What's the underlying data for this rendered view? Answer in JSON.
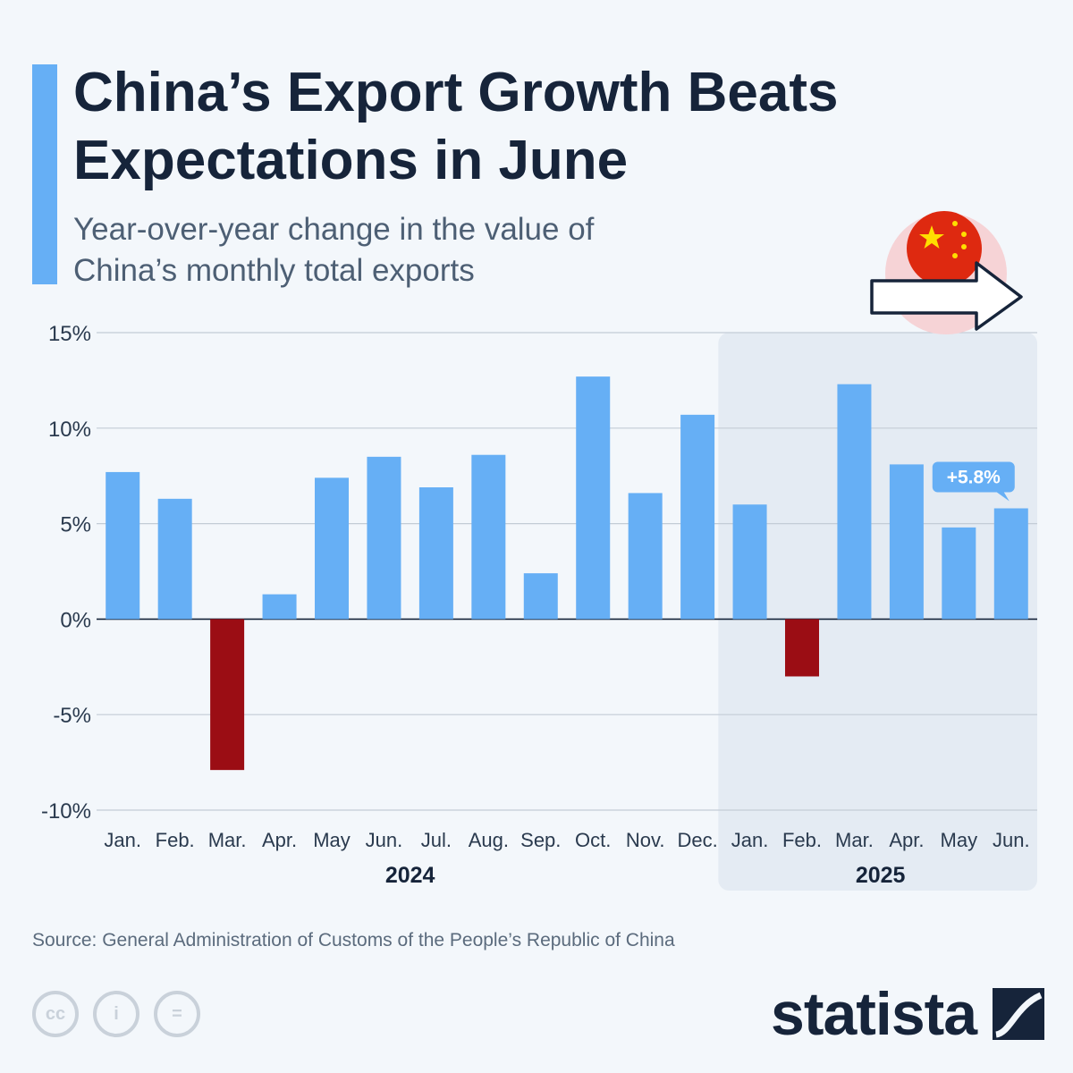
{
  "header": {
    "title": "China’s Export Growth Beats Expectations in June",
    "subtitle": "Year-over-year change in the value of China’s monthly total exports"
  },
  "colors": {
    "positive": "#66aff5",
    "negative": "#9b0d14",
    "accent": "#66aff5",
    "highlight_bg": "#e4ebf3"
  },
  "chart_data": {
    "type": "bar",
    "title": "China’s Export Growth Beats Expectations in June",
    "subtitle": "Year-over-year change in the value of China’s monthly total exports",
    "categories": [
      "Jan.",
      "Feb.",
      "Mar.",
      "Apr.",
      "May",
      "Jun.",
      "Jul.",
      "Aug.",
      "Sep.",
      "Oct.",
      "Nov.",
      "Dec.",
      "Jan.",
      "Feb.",
      "Mar.",
      "Apr.",
      "May",
      "Jun."
    ],
    "groups": [
      {
        "label": "2024",
        "start": 0,
        "end": 11
      },
      {
        "label": "2025",
        "start": 12,
        "end": 17
      }
    ],
    "values": [
      7.7,
      6.3,
      -7.9,
      1.3,
      7.4,
      8.5,
      6.9,
      8.6,
      2.4,
      12.7,
      6.6,
      10.7,
      6.0,
      -3.0,
      12.3,
      8.1,
      4.8,
      5.8
    ],
    "yticks": [
      15,
      10,
      5,
      0,
      -5,
      -10
    ],
    "ytick_labels": [
      "15%",
      "10%",
      "5%",
      "0%",
      "-5%",
      "-10%"
    ],
    "ylim": [
      -10,
      15
    ],
    "xlabel": "",
    "ylabel": "",
    "annotation": {
      "index": 17,
      "text": "+5.8%"
    },
    "highlight_group": "2025"
  },
  "footer": {
    "source": "Source: General Administration of Customs of the People’s Republic of China",
    "brand": "statista",
    "license_icons": [
      "cc-icon",
      "attribution-icon",
      "no-derivatives-icon"
    ],
    "license_labels": [
      "cc",
      "i",
      "="
    ]
  }
}
